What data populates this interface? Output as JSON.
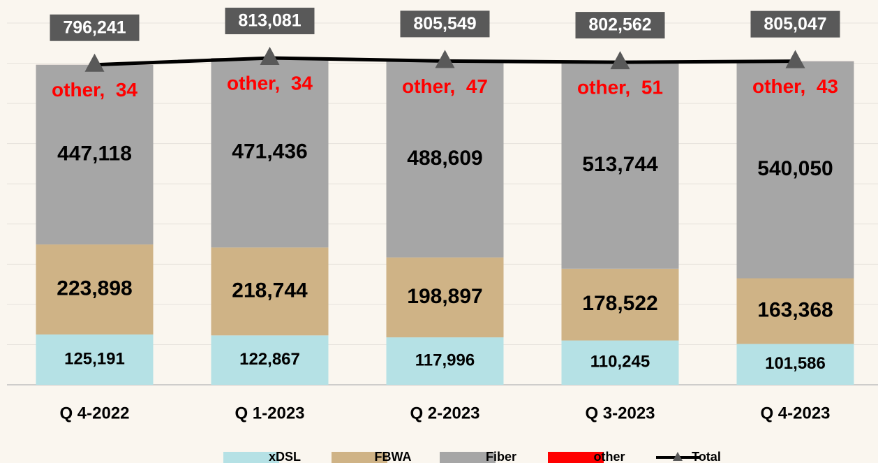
{
  "chart_data": {
    "type": "bar",
    "stacked": true,
    "categories": [
      "Q 4-2022",
      "Q 1-2023",
      "Q 2-2023",
      "Q 3-2023",
      "Q 4-2023"
    ],
    "ylim": [
      0,
      900000
    ],
    "yticks": [
      0,
      100000,
      200000,
      300000,
      400000,
      500000,
      600000,
      700000,
      800000,
      900000
    ],
    "grid": true,
    "legend": "bottom",
    "series": [
      {
        "name": "xDSL",
        "color": "#b5e1e5",
        "values": [
          125191,
          122867,
          117996,
          110245,
          101586
        ],
        "value_labels": [
          "125,191",
          "122,867",
          "117,996",
          "110,245",
          "101,586"
        ]
      },
      {
        "name": "FBWA",
        "color": "#cfb386",
        "values": [
          223898,
          218744,
          198897,
          178522,
          163368
        ],
        "value_labels": [
          "223,898",
          "218,744",
          "198,897",
          "178,522",
          "163,368"
        ]
      },
      {
        "name": "Fiber",
        "color": "#a6a6a6",
        "values": [
          447118,
          471436,
          488609,
          513744,
          540050
        ],
        "value_labels": [
          "447,118",
          "471,436",
          "488,609",
          "513,744",
          "540,050"
        ]
      },
      {
        "name": "other",
        "color": "#ff0000",
        "values": [
          34,
          34,
          47,
          51,
          43
        ],
        "value_labels": [
          "other,  34",
          "other,  34",
          "other,  47",
          "other,  51",
          "other,  43"
        ]
      },
      {
        "name": "Total",
        "type": "line",
        "color": "#000000",
        "marker_color": "#595959",
        "values": [
          796241,
          813081,
          805549,
          802562,
          805047
        ],
        "value_labels": [
          "796,241",
          "813,081",
          "805,549",
          "802,562",
          "805,047"
        ]
      }
    ]
  }
}
